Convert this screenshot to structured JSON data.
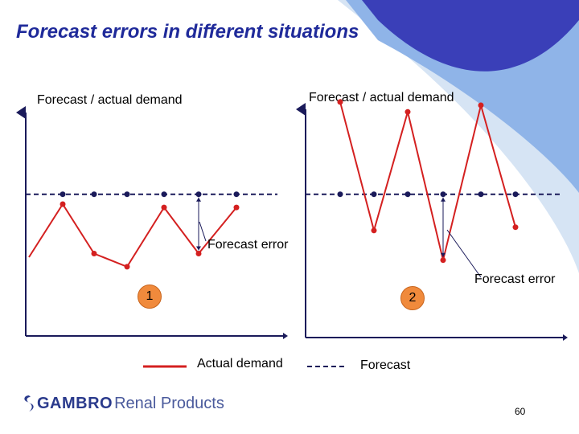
{
  "title": "Forecast errors in different situations",
  "chart_data": [
    {
      "type": "line",
      "panel_label": "1",
      "ylabel": "Forecast / actual demand",
      "xlabel": "",
      "x": [
        1,
        2,
        3,
        4,
        5,
        6
      ],
      "ylim": [
        0,
        10
      ],
      "series": [
        {
          "name": "Actual demand",
          "values": [
            6.0,
            4.5,
            4.1,
            5.9,
            4.5,
            5.9
          ],
          "color": "#d42020",
          "style": "solid"
        },
        {
          "name": "Forecast",
          "values": [
            6.3,
            6.3,
            6.3,
            6.3,
            6.3,
            6.3
          ],
          "color": "#1a1a5a",
          "style": "dashed"
        }
      ],
      "annotation": "Forecast error"
    },
    {
      "type": "line",
      "panel_label": "2",
      "ylabel": "Forecast / actual demand",
      "xlabel": "",
      "x": [
        1,
        2,
        3,
        4,
        5,
        6
      ],
      "ylim": [
        0,
        10
      ],
      "series": [
        {
          "name": "Actual demand",
          "values": [
            9.1,
            5.2,
            8.8,
            4.3,
            9.0,
            5.3
          ],
          "color": "#d42020",
          "style": "solid"
        },
        {
          "name": "Forecast",
          "values": [
            6.3,
            6.3,
            6.3,
            6.3,
            6.3,
            6.3
          ],
          "color": "#1a1a5a",
          "style": "dashed"
        }
      ],
      "annotation": "Forecast error"
    }
  ],
  "legend": {
    "actual_label": "Actual demand",
    "forecast_label": "Forecast"
  },
  "logo": {
    "brand": "GAMBRO",
    "suffix": "Renal Products"
  },
  "page_number": "60",
  "colors": {
    "title": "#1f2a9a",
    "swoosh_dark": "#3a3fb8",
    "swoosh_mid": "#8fb4e8",
    "swoosh_light": "#d6e4f4",
    "actual": "#d42020",
    "forecast": "#1a1a5a",
    "badge": "#f08a3c"
  }
}
